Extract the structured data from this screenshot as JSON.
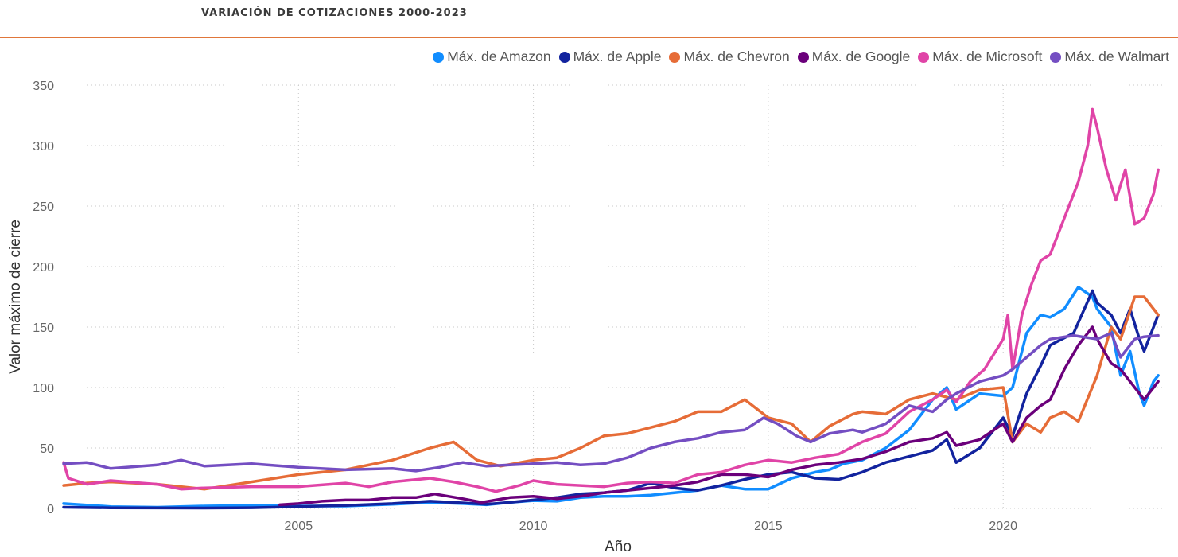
{
  "header": {
    "title": "VARIACIÓN DE COTIZACIONES 2000-2023"
  },
  "chart_data": {
    "type": "line",
    "title": "VARIACIÓN DE COTIZACIONES 2000-2023",
    "xlabel": "Año",
    "ylabel": "Valor máximo de cierre",
    "xlim": [
      2000.0,
      2023.4
    ],
    "ylim": [
      0,
      350
    ],
    "xticks": [
      2005,
      2010,
      2015,
      2020
    ],
    "yticks": [
      0,
      50,
      100,
      150,
      200,
      250,
      300,
      350
    ],
    "grid": true,
    "legend_position": "top-right",
    "series": [
      {
        "name": "Máx. de Amazon",
        "color": "#118DFF",
        "points": [
          [
            2000.0,
            4
          ],
          [
            2001.0,
            1.5
          ],
          [
            2002.0,
            1
          ],
          [
            2003.0,
            2
          ],
          [
            2004.0,
            2.5
          ],
          [
            2005.0,
            2
          ],
          [
            2006.0,
            2
          ],
          [
            2007.0,
            3.5
          ],
          [
            2007.8,
            5
          ],
          [
            2008.5,
            4
          ],
          [
            2009.0,
            3
          ],
          [
            2009.5,
            5
          ],
          [
            2010.0,
            6.5
          ],
          [
            2010.5,
            6
          ],
          [
            2011.0,
            9
          ],
          [
            2011.5,
            10
          ],
          [
            2012.0,
            10
          ],
          [
            2012.5,
            11
          ],
          [
            2013.0,
            13
          ],
          [
            2013.5,
            15
          ],
          [
            2014.0,
            19
          ],
          [
            2014.5,
            16
          ],
          [
            2015.0,
            16
          ],
          [
            2015.5,
            25
          ],
          [
            2016.0,
            30
          ],
          [
            2016.3,
            32
          ],
          [
            2016.6,
            37
          ],
          [
            2017.0,
            40
          ],
          [
            2017.5,
            50
          ],
          [
            2018.0,
            65
          ],
          [
            2018.5,
            90
          ],
          [
            2018.8,
            100
          ],
          [
            2019.0,
            82
          ],
          [
            2019.5,
            95
          ],
          [
            2020.0,
            93
          ],
          [
            2020.2,
            100
          ],
          [
            2020.5,
            145
          ],
          [
            2020.8,
            160
          ],
          [
            2021.0,
            158
          ],
          [
            2021.3,
            165
          ],
          [
            2021.6,
            183
          ],
          [
            2021.9,
            175
          ],
          [
            2022.0,
            165
          ],
          [
            2022.3,
            150
          ],
          [
            2022.5,
            110
          ],
          [
            2022.7,
            130
          ],
          [
            2022.9,
            95
          ],
          [
            2023.0,
            85
          ],
          [
            2023.2,
            105
          ],
          [
            2023.3,
            110
          ]
        ]
      },
      {
        "name": "Máx. de Apple",
        "color": "#12239E",
        "points": [
          [
            2000.0,
            1
          ],
          [
            2001.0,
            0.5
          ],
          [
            2002.0,
            0.4
          ],
          [
            2003.0,
            0.3
          ],
          [
            2004.0,
            0.6
          ],
          [
            2005.0,
            1.5
          ],
          [
            2006.0,
            2.5
          ],
          [
            2007.0,
            4
          ],
          [
            2007.8,
            6
          ],
          [
            2008.3,
            5
          ],
          [
            2009.0,
            3.5
          ],
          [
            2009.5,
            5
          ],
          [
            2010.0,
            7
          ],
          [
            2010.5,
            9
          ],
          [
            2011.0,
            12
          ],
          [
            2011.5,
            13
          ],
          [
            2012.0,
            15
          ],
          [
            2012.5,
            21
          ],
          [
            2013.0,
            17
          ],
          [
            2013.5,
            15
          ],
          [
            2014.0,
            19
          ],
          [
            2014.5,
            24
          ],
          [
            2015.0,
            28
          ],
          [
            2015.5,
            30
          ],
          [
            2016.0,
            25
          ],
          [
            2016.5,
            24
          ],
          [
            2017.0,
            30
          ],
          [
            2017.5,
            38
          ],
          [
            2018.0,
            43
          ],
          [
            2018.5,
            48
          ],
          [
            2018.8,
            57
          ],
          [
            2019.0,
            38
          ],
          [
            2019.5,
            50
          ],
          [
            2020.0,
            75
          ],
          [
            2020.2,
            60
          ],
          [
            2020.5,
            95
          ],
          [
            2020.8,
            118
          ],
          [
            2021.0,
            135
          ],
          [
            2021.5,
            145
          ],
          [
            2021.9,
            180
          ],
          [
            2022.0,
            170
          ],
          [
            2022.3,
            160
          ],
          [
            2022.5,
            145
          ],
          [
            2022.7,
            165
          ],
          [
            2022.9,
            140
          ],
          [
            2023.0,
            130
          ],
          [
            2023.2,
            150
          ],
          [
            2023.3,
            160
          ]
        ]
      },
      {
        "name": "Máx. de Chevron",
        "color": "#E66C37",
        "points": [
          [
            2000.0,
            19
          ],
          [
            2000.5,
            21
          ],
          [
            2001.0,
            22
          ],
          [
            2002.0,
            20
          ],
          [
            2003.0,
            16
          ],
          [
            2004.0,
            22
          ],
          [
            2005.0,
            28
          ],
          [
            2006.0,
            32
          ],
          [
            2007.0,
            40
          ],
          [
            2007.8,
            50
          ],
          [
            2008.3,
            55
          ],
          [
            2008.8,
            40
          ],
          [
            2009.3,
            35
          ],
          [
            2010.0,
            40
          ],
          [
            2010.5,
            42
          ],
          [
            2011.0,
            50
          ],
          [
            2011.5,
            60
          ],
          [
            2012.0,
            62
          ],
          [
            2012.5,
            67
          ],
          [
            2013.0,
            72
          ],
          [
            2013.5,
            80
          ],
          [
            2014.0,
            80
          ],
          [
            2014.5,
            90
          ],
          [
            2015.0,
            75
          ],
          [
            2015.5,
            70
          ],
          [
            2015.9,
            55
          ],
          [
            2016.3,
            68
          ],
          [
            2016.8,
            78
          ],
          [
            2017.0,
            80
          ],
          [
            2017.5,
            78
          ],
          [
            2018.0,
            90
          ],
          [
            2018.5,
            95
          ],
          [
            2019.0,
            90
          ],
          [
            2019.5,
            98
          ],
          [
            2020.0,
            100
          ],
          [
            2020.2,
            55
          ],
          [
            2020.5,
            70
          ],
          [
            2020.8,
            63
          ],
          [
            2021.0,
            75
          ],
          [
            2021.3,
            80
          ],
          [
            2021.6,
            72
          ],
          [
            2022.0,
            110
          ],
          [
            2022.3,
            150
          ],
          [
            2022.5,
            140
          ],
          [
            2022.8,
            175
          ],
          [
            2023.0,
            175
          ],
          [
            2023.2,
            165
          ],
          [
            2023.3,
            160
          ]
        ]
      },
      {
        "name": "Máx. de Google",
        "color": "#6B007B",
        "points": [
          [
            2004.6,
            3
          ],
          [
            2005.0,
            4
          ],
          [
            2005.5,
            6
          ],
          [
            2006.0,
            7
          ],
          [
            2006.5,
            7
          ],
          [
            2007.0,
            9
          ],
          [
            2007.5,
            9
          ],
          [
            2007.9,
            12
          ],
          [
            2008.5,
            8
          ],
          [
            2008.9,
            5
          ],
          [
            2009.5,
            9
          ],
          [
            2010.0,
            10
          ],
          [
            2010.5,
            8
          ],
          [
            2011.0,
            10
          ],
          [
            2011.5,
            13
          ],
          [
            2012.0,
            15
          ],
          [
            2012.5,
            17
          ],
          [
            2013.0,
            19
          ],
          [
            2013.5,
            22
          ],
          [
            2014.0,
            28
          ],
          [
            2014.5,
            28
          ],
          [
            2015.0,
            26
          ],
          [
            2015.5,
            32
          ],
          [
            2016.0,
            36
          ],
          [
            2016.5,
            38
          ],
          [
            2017.0,
            41
          ],
          [
            2017.5,
            47
          ],
          [
            2018.0,
            55
          ],
          [
            2018.5,
            58
          ],
          [
            2018.8,
            63
          ],
          [
            2019.0,
            52
          ],
          [
            2019.5,
            57
          ],
          [
            2020.0,
            70
          ],
          [
            2020.2,
            55
          ],
          [
            2020.5,
            75
          ],
          [
            2020.8,
            85
          ],
          [
            2021.0,
            90
          ],
          [
            2021.3,
            115
          ],
          [
            2021.6,
            135
          ],
          [
            2021.9,
            150
          ],
          [
            2022.0,
            140
          ],
          [
            2022.3,
            120
          ],
          [
            2022.5,
            115
          ],
          [
            2022.7,
            105
          ],
          [
            2022.9,
            95
          ],
          [
            2023.0,
            90
          ],
          [
            2023.2,
            100
          ],
          [
            2023.3,
            105
          ]
        ]
      },
      {
        "name": "Máx. de Microsoft",
        "color": "#E044A7",
        "points": [
          [
            2000.0,
            38
          ],
          [
            2000.1,
            25
          ],
          [
            2000.5,
            20
          ],
          [
            2001.0,
            23
          ],
          [
            2002.0,
            20
          ],
          [
            2002.5,
            16
          ],
          [
            2003.0,
            17
          ],
          [
            2004.0,
            18
          ],
          [
            2005.0,
            18
          ],
          [
            2006.0,
            21
          ],
          [
            2006.5,
            18
          ],
          [
            2007.0,
            22
          ],
          [
            2007.8,
            25
          ],
          [
            2008.3,
            22
          ],
          [
            2008.8,
            18
          ],
          [
            2009.2,
            14
          ],
          [
            2009.7,
            19
          ],
          [
            2010.0,
            23
          ],
          [
            2010.5,
            20
          ],
          [
            2011.0,
            19
          ],
          [
            2011.5,
            18
          ],
          [
            2012.0,
            21
          ],
          [
            2012.5,
            22
          ],
          [
            2013.0,
            21
          ],
          [
            2013.5,
            28
          ],
          [
            2014.0,
            30
          ],
          [
            2014.5,
            36
          ],
          [
            2015.0,
            40
          ],
          [
            2015.5,
            38
          ],
          [
            2016.0,
            42
          ],
          [
            2016.5,
            45
          ],
          [
            2017.0,
            55
          ],
          [
            2017.5,
            62
          ],
          [
            2018.0,
            80
          ],
          [
            2018.5,
            90
          ],
          [
            2018.8,
            98
          ],
          [
            2019.0,
            88
          ],
          [
            2019.3,
            105
          ],
          [
            2019.6,
            115
          ],
          [
            2020.0,
            140
          ],
          [
            2020.1,
            160
          ],
          [
            2020.2,
            115
          ],
          [
            2020.4,
            160
          ],
          [
            2020.6,
            185
          ],
          [
            2020.8,
            205
          ],
          [
            2021.0,
            210
          ],
          [
            2021.3,
            240
          ],
          [
            2021.6,
            270
          ],
          [
            2021.8,
            300
          ],
          [
            2021.9,
            330
          ],
          [
            2022.0,
            315
          ],
          [
            2022.2,
            280
          ],
          [
            2022.4,
            255
          ],
          [
            2022.6,
            280
          ],
          [
            2022.8,
            235
          ],
          [
            2023.0,
            240
          ],
          [
            2023.2,
            260
          ],
          [
            2023.3,
            280
          ]
        ]
      },
      {
        "name": "Máx. de Walmart",
        "color": "#744EC2",
        "points": [
          [
            2000.0,
            37
          ],
          [
            2000.5,
            38
          ],
          [
            2001.0,
            33
          ],
          [
            2002.0,
            36
          ],
          [
            2002.5,
            40
          ],
          [
            2003.0,
            35
          ],
          [
            2004.0,
            37
          ],
          [
            2005.0,
            34
          ],
          [
            2006.0,
            32
          ],
          [
            2007.0,
            33
          ],
          [
            2007.5,
            31
          ],
          [
            2008.0,
            34
          ],
          [
            2008.5,
            38
          ],
          [
            2009.0,
            35
          ],
          [
            2009.5,
            36
          ],
          [
            2010.0,
            37
          ],
          [
            2010.5,
            38
          ],
          [
            2011.0,
            36
          ],
          [
            2011.5,
            37
          ],
          [
            2012.0,
            42
          ],
          [
            2012.5,
            50
          ],
          [
            2013.0,
            55
          ],
          [
            2013.5,
            58
          ],
          [
            2014.0,
            63
          ],
          [
            2014.5,
            65
          ],
          [
            2014.9,
            75
          ],
          [
            2015.2,
            70
          ],
          [
            2015.6,
            60
          ],
          [
            2015.9,
            55
          ],
          [
            2016.3,
            62
          ],
          [
            2016.8,
            65
          ],
          [
            2017.0,
            63
          ],
          [
            2017.5,
            70
          ],
          [
            2018.0,
            85
          ],
          [
            2018.5,
            80
          ],
          [
            2018.8,
            90
          ],
          [
            2019.0,
            95
          ],
          [
            2019.5,
            105
          ],
          [
            2020.0,
            110
          ],
          [
            2020.2,
            115
          ],
          [
            2020.5,
            125
          ],
          [
            2020.8,
            135
          ],
          [
            2021.0,
            140
          ],
          [
            2021.5,
            143
          ],
          [
            2022.0,
            140
          ],
          [
            2022.3,
            145
          ],
          [
            2022.5,
            125
          ],
          [
            2022.8,
            140
          ],
          [
            2023.0,
            142
          ],
          [
            2023.3,
            143
          ]
        ]
      }
    ]
  }
}
